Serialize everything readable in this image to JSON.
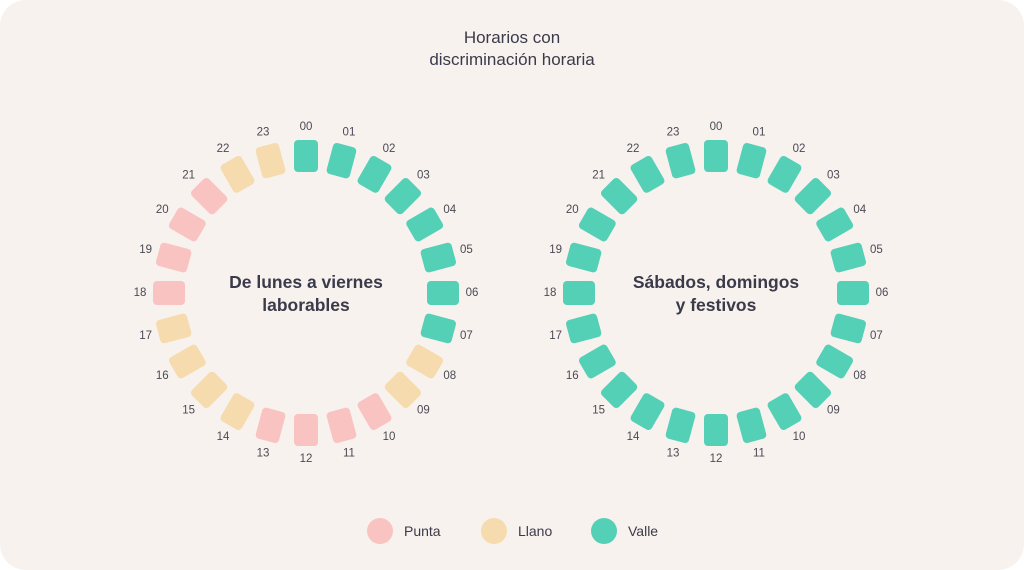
{
  "title_lines": [
    "Horarios con",
    "discriminación horaria"
  ],
  "colors": {
    "punta": "#f9c3c2",
    "llano": "#f6dbae",
    "valle": "#54d0b7",
    "background": "#f8f2ee",
    "text": "#3b3a4a"
  },
  "wheels": [
    {
      "center_label_lines": [
        "De lunes a viernes",
        "laborables"
      ],
      "hours": [
        {
          "label": "00",
          "period": "valle"
        },
        {
          "label": "01",
          "period": "valle"
        },
        {
          "label": "02",
          "period": "valle"
        },
        {
          "label": "03",
          "period": "valle"
        },
        {
          "label": "04",
          "period": "valle"
        },
        {
          "label": "05",
          "period": "valle"
        },
        {
          "label": "06",
          "period": "valle"
        },
        {
          "label": "07",
          "period": "valle"
        },
        {
          "label": "08",
          "period": "llano"
        },
        {
          "label": "09",
          "period": "llano"
        },
        {
          "label": "10",
          "period": "punta"
        },
        {
          "label": "11",
          "period": "punta"
        },
        {
          "label": "12",
          "period": "punta"
        },
        {
          "label": "13",
          "period": "punta"
        },
        {
          "label": "14",
          "period": "llano"
        },
        {
          "label": "15",
          "period": "llano"
        },
        {
          "label": "16",
          "period": "llano"
        },
        {
          "label": "17",
          "period": "llano"
        },
        {
          "label": "18",
          "period": "punta"
        },
        {
          "label": "19",
          "period": "punta"
        },
        {
          "label": "20",
          "period": "punta"
        },
        {
          "label": "21",
          "period": "punta"
        },
        {
          "label": "22",
          "period": "llano"
        },
        {
          "label": "23",
          "period": "llano"
        }
      ]
    },
    {
      "center_label_lines": [
        "Sábados, domingos",
        "y festivos"
      ],
      "hours": [
        {
          "label": "00",
          "period": "valle"
        },
        {
          "label": "01",
          "period": "valle"
        },
        {
          "label": "02",
          "period": "valle"
        },
        {
          "label": "03",
          "period": "valle"
        },
        {
          "label": "04",
          "period": "valle"
        },
        {
          "label": "05",
          "period": "valle"
        },
        {
          "label": "06",
          "period": "valle"
        },
        {
          "label": "07",
          "period": "valle"
        },
        {
          "label": "08",
          "period": "valle"
        },
        {
          "label": "09",
          "period": "valle"
        },
        {
          "label": "10",
          "period": "valle"
        },
        {
          "label": "11",
          "period": "valle"
        },
        {
          "label": "12",
          "period": "valle"
        },
        {
          "label": "13",
          "period": "valle"
        },
        {
          "label": "14",
          "period": "valle"
        },
        {
          "label": "15",
          "period": "valle"
        },
        {
          "label": "16",
          "period": "valle"
        },
        {
          "label": "17",
          "period": "valle"
        },
        {
          "label": "18",
          "period": "valle"
        },
        {
          "label": "19",
          "period": "valle"
        },
        {
          "label": "20",
          "period": "valle"
        },
        {
          "label": "21",
          "period": "valle"
        },
        {
          "label": "22",
          "period": "valle"
        },
        {
          "label": "23",
          "period": "valle"
        }
      ]
    }
  ],
  "legend": [
    {
      "label": "Punta",
      "period": "punta"
    },
    {
      "label": "Llano",
      "period": "llano"
    },
    {
      "label": "Valle",
      "period": "valle"
    }
  ]
}
